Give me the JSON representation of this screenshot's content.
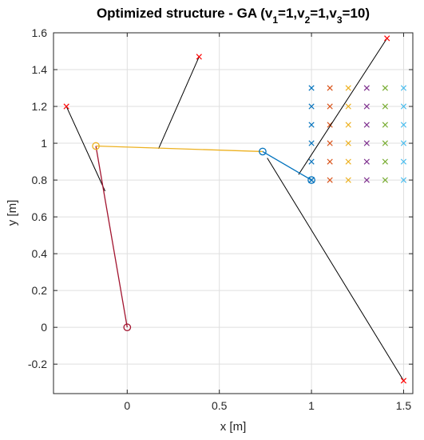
{
  "chart_data": {
    "type": "scatter",
    "title": {
      "prefix": "Optimized structure - GA (v",
      "sub1": "1",
      "mid1": "=1,v",
      "sub2": "2",
      "mid2": "=1,v",
      "sub3": "3",
      "suffix": "=10)"
    },
    "xlabel": "x [m]",
    "ylabel": "y [m]",
    "xlim": [
      -0.4,
      1.55
    ],
    "ylim": [
      -0.36,
      1.6
    ],
    "xticks": [
      0,
      0.5,
      1,
      1.5
    ],
    "xtick_labels": [
      "0",
      "0.5",
      "1",
      "1.5"
    ],
    "yticks": [
      -0.2,
      0,
      0.2,
      0.4,
      0.6,
      0.8,
      1,
      1.2,
      1.4,
      1.6
    ],
    "ytick_labels": [
      "-0.2",
      "0",
      "0.2",
      "0.4",
      "0.6",
      "0.8",
      "1",
      "1.2",
      "1.4",
      "1.6"
    ],
    "grid": true,
    "links": [
      {
        "name": "link-1",
        "color": "#a2142f",
        "points": [
          [
            0,
            0
          ],
          [
            -0.17,
            0.985
          ]
        ]
      },
      {
        "name": "link-2",
        "color": "#edb120",
        "points": [
          [
            -0.17,
            0.985
          ],
          [
            0.735,
            0.955
          ]
        ]
      },
      {
        "name": "link-3",
        "color": "#0072bd",
        "points": [
          [
            0.735,
            0.955
          ],
          [
            1,
            0.8
          ]
        ]
      }
    ],
    "joints": [
      {
        "name": "joint-base",
        "color": "#a2142f",
        "x": 0,
        "y": 0
      },
      {
        "name": "joint-2",
        "color": "#edb120",
        "x": -0.17,
        "y": 0.985
      },
      {
        "name": "joint-3",
        "color": "#0072bd",
        "x": 0.735,
        "y": 0.955
      },
      {
        "name": "joint-end",
        "color": "#0072bd",
        "x": 1,
        "y": 0.8
      }
    ],
    "end_effector_cross": {
      "color": "#0072bd",
      "x": 1,
      "y": 0.8
    },
    "actuators": [
      {
        "name": "actuator-1",
        "color": "#000000",
        "anchor": [
          -0.33,
          1.2
        ],
        "attach": [
          -0.12,
          0.74
        ]
      },
      {
        "name": "actuator-2",
        "color": "#000000",
        "anchor": [
          0.39,
          1.47
        ],
        "attach": [
          0.17,
          0.97
        ]
      },
      {
        "name": "actuator-3",
        "color": "#000000",
        "anchor": [
          1.41,
          1.57
        ],
        "attach": [
          0.93,
          0.83
        ]
      },
      {
        "name": "actuator-4",
        "color": "#000000",
        "anchor": [
          1.5,
          -0.29
        ],
        "attach": [
          0.76,
          0.92
        ]
      }
    ],
    "anchor_marker_color": "#ff0000",
    "workspace_grid": {
      "x": [
        1,
        1.1,
        1.2,
        1.3,
        1.4,
        1.5
      ],
      "y": [
        0.8,
        0.9,
        1.0,
        1.1,
        1.2,
        1.3
      ],
      "colors": [
        "#0072bd",
        "#d95319",
        "#edb120",
        "#7e2f8e",
        "#77ac30",
        "#4dbeee"
      ]
    }
  }
}
